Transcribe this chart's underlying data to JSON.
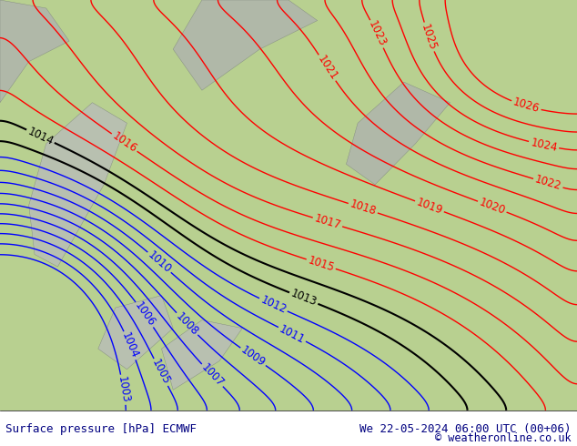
{
  "title_left": "Surface pressure [hPa] ECMWF",
  "title_right": "We 22-05-2024 06:00 UTC (00+06)",
  "copyright": "© weatheronline.co.uk",
  "bg_color": "#b8d090",
  "land_color": "#c8d8a0",
  "sea_color": "#c8e0b0",
  "contour_levels_blue": [
    1003,
    1004,
    1005,
    1006,
    1007,
    1008,
    1009,
    1010,
    1011,
    1012
  ],
  "contour_levels_red": [
    1015,
    1016,
    1017,
    1018,
    1019,
    1020,
    1021,
    1022,
    1023,
    1024,
    1025,
    1026
  ],
  "contour_levels_black": [
    1013,
    1014
  ],
  "figsize": [
    6.34,
    4.9
  ],
  "dpi": 100,
  "footer_bg": "#ffffff",
  "footer_text_color": "#000080",
  "label_fontsize": 8.5,
  "footer_fontsize": 9
}
